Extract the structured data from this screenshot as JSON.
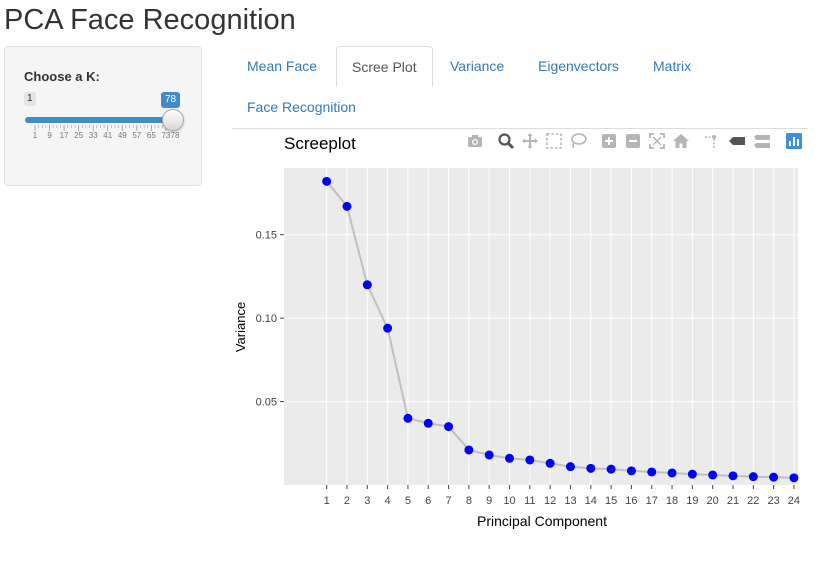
{
  "app": {
    "title": "PCA Face Recognition"
  },
  "sidebar": {
    "k_label": "Choose a K:",
    "slider": {
      "min": 1,
      "max": 78,
      "value": 78,
      "min_label": "1",
      "value_label": "78",
      "ticks": [
        "1",
        "9",
        "17",
        "25",
        "33",
        "41",
        "49",
        "57",
        "65",
        "73",
        "78"
      ]
    }
  },
  "tabs": [
    {
      "label": "Mean Face",
      "active": false
    },
    {
      "label": "Scree Plot",
      "active": true
    },
    {
      "label": "Variance",
      "active": false
    },
    {
      "label": "Eigenvectors",
      "active": false
    },
    {
      "label": "Matrix",
      "active": false
    },
    {
      "label": "Face Recognition",
      "active": false
    }
  ],
  "modebar": {
    "buttons": [
      "camera-icon",
      "zoom-icon",
      "pan-icon",
      "box-select-icon",
      "lasso-select-icon",
      "zoom-in-icon",
      "zoom-out-icon",
      "autoscale-icon",
      "reset-axes-icon",
      "spike-lines-icon",
      "hover-closest-icon",
      "hover-compare-icon",
      "plotly-logo-icon"
    ],
    "active": "zoom-icon"
  },
  "colors": {
    "accent": "#428bca",
    "link": "#337ab7",
    "marker": "#0000ff",
    "line": "#c0c0c0",
    "plot_bg": "#ebebeb"
  },
  "chart_data": {
    "type": "line",
    "title": "Screeplot",
    "xlabel": "Principal Component",
    "ylabel": "Variance",
    "x": [
      1,
      2,
      3,
      4,
      5,
      6,
      7,
      8,
      9,
      10,
      11,
      12,
      13,
      14,
      15,
      16,
      17,
      18,
      19,
      20,
      21,
      22,
      23,
      24
    ],
    "values": [
      0.182,
      0.167,
      0.12,
      0.094,
      0.04,
      0.037,
      0.035,
      0.021,
      0.018,
      0.016,
      0.015,
      0.013,
      0.011,
      0.01,
      0.0095,
      0.0085,
      0.0078,
      0.0072,
      0.0065,
      0.006,
      0.0055,
      0.005,
      0.0047,
      0.0043
    ],
    "xticks": [
      "1",
      "2",
      "3",
      "4",
      "5",
      "6",
      "7",
      "8",
      "9",
      "10",
      "11",
      "12",
      "13",
      "14",
      "15",
      "16",
      "17",
      "18",
      "19",
      "20",
      "21",
      "22",
      "23",
      "24"
    ],
    "yticks": [
      "0.05",
      "0.10",
      "0.15"
    ],
    "ytick_values": [
      0.05,
      0.1,
      0.15
    ],
    "ylim": [
      0.0,
      0.19
    ],
    "xlim": [
      -1.1,
      24.2
    ],
    "grid": true,
    "markers": true
  }
}
